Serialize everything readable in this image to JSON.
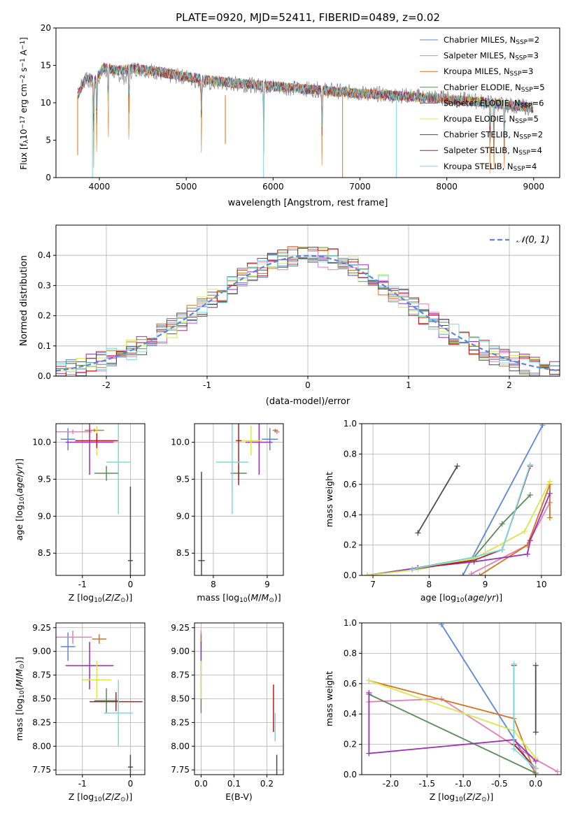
{
  "colors": {
    "Chabrier MILES": "#5b86d8",
    "Salpeter MILES": "#e37fb6",
    "Kroupa MILES": "#d6731f",
    "Chabrier ELODIE": "#5b8a5b",
    "Salpeter ELODIE": "#9a2fb8",
    "Kroupa ELODIE": "#d6e84e",
    "Chabrier STELIB": "#4d4d4d",
    "Salpeter STELIB": "#b31f1f",
    "Kroupa STELIB": "#7fd7e0",
    "normal_curve": "#5b86d8",
    "data_spectrum": "#808080"
  },
  "chart_data": [
    {
      "type": "line",
      "id": "spectrum",
      "title": "PLATE=0920, MJD=52411, FIBERID=0489, z=0.02",
      "xlabel": "wavelength [Angstrom, rest frame]",
      "ylabel_parts": [
        "Flux [f",
        "λ",
        "10",
        "−17",
        " erg cm",
        "−2",
        " s",
        "−1",
        " A",
        "−1",
        "]"
      ],
      "xlim": [
        3500,
        9300
      ],
      "ylim": [
        0,
        20
      ],
      "xticks": [
        4000,
        5000,
        6000,
        7000,
        8000,
        9000
      ],
      "yticks": [
        0,
        5,
        10,
        15,
        20
      ],
      "grid": false,
      "legend_position": "upper-right",
      "legend": [
        {
          "label": "Chabrier MILES, N",
          "sub": "SSP",
          "tail": "=2"
        },
        {
          "label": "Salpeter MILES, N",
          "sub": "SSP",
          "tail": "=3"
        },
        {
          "label": "Kroupa MILES, N",
          "sub": "SSP",
          "tail": "=3"
        },
        {
          "label": "Chabrier ELODIE, N",
          "sub": "SSP",
          "tail": "=5"
        },
        {
          "label": "Salpeter ELODIE, N",
          "sub": "SSP",
          "tail": "=6"
        },
        {
          "label": "Kroupa ELODIE, N",
          "sub": "SSP",
          "tail": "=5"
        },
        {
          "label": "Chabrier STELIB, N",
          "sub": "SSP",
          "tail": "=2"
        },
        {
          "label": "Salpeter STELIB, N",
          "sub": "SSP",
          "tail": "=4"
        },
        {
          "label": "Kroupa STELIB, N",
          "sub": "SSP",
          "tail": "=4"
        }
      ],
      "data_spectrum_points": [
        [
          3750,
          11.8
        ],
        [
          3850,
          13.2
        ],
        [
          3950,
          12.4
        ],
        [
          4050,
          14.6
        ],
        [
          4150,
          14.2
        ],
        [
          4300,
          13.4
        ],
        [
          4400,
          14.6
        ],
        [
          4600,
          14.3
        ],
        [
          4800,
          13.6
        ],
        [
          5000,
          13.5
        ],
        [
          5200,
          12.6
        ],
        [
          5500,
          12.6
        ],
        [
          5800,
          12.3
        ],
        [
          6000,
          12.2
        ],
        [
          6300,
          11.9
        ],
        [
          6600,
          11.7
        ],
        [
          7000,
          11.3
        ],
        [
          7400,
          11.0
        ],
        [
          7800,
          10.8
        ],
        [
          8200,
          10.4
        ],
        [
          8500,
          10.0
        ],
        [
          8800,
          9.6
        ],
        [
          9000,
          9.3
        ]
      ],
      "model_spectrum_points": [
        [
          3750,
          11.0
        ],
        [
          3850,
          13.5
        ],
        [
          3950,
          13.0
        ],
        [
          4050,
          14.7
        ],
        [
          4200,
          14.3
        ],
        [
          4400,
          14.6
        ],
        [
          4700,
          14.1
        ],
        [
          5000,
          13.5
        ],
        [
          5300,
          12.9
        ],
        [
          5600,
          12.6
        ],
        [
          6000,
          12.2
        ],
        [
          6400,
          11.8
        ],
        [
          6800,
          11.4
        ],
        [
          7200,
          11.1
        ],
        [
          7600,
          10.8
        ],
        [
          8000,
          10.5
        ],
        [
          8400,
          10.1
        ],
        [
          8700,
          9.7
        ],
        [
          9000,
          9.3
        ]
      ],
      "absorption_lines": [
        3934,
        3969,
        4102,
        4340,
        5175,
        5892,
        6563,
        8498,
        8542,
        8662
      ]
    },
    {
      "type": "histogram",
      "id": "residuals",
      "xlabel": "(data-model)/error",
      "ylabel": "Normed distribution",
      "xlim": [
        -2.5,
        2.5
      ],
      "ylim": [
        0,
        0.5
      ],
      "xticks": [
        -2,
        -1,
        0,
        1,
        2
      ],
      "yticks": [
        0.0,
        0.1,
        0.2,
        0.3,
        0.4
      ],
      "grid": true,
      "legend_position": "upper-right",
      "legend": [
        {
          "label": "𝒩(0, 1)",
          "style": "dashed"
        }
      ],
      "bin_width": 0.1
    },
    {
      "type": "scatter",
      "id": "age_vs_Z",
      "xlabel": "Z [log10(Z/Z⊙)]",
      "ylabel": "age [log10(age/yr)]",
      "xlim": [
        -1.55,
        0.3
      ],
      "ylim": [
        8.2,
        10.25
      ],
      "xticks": [
        -1,
        0
      ],
      "yticks": [
        8.5,
        9.0,
        9.5,
        10.0
      ],
      "grid": true,
      "points": [
        {
          "model": "Chabrier MILES",
          "x": -1.3,
          "xerr": 0.15,
          "y": 10.04,
          "yerr": 0.15
        },
        {
          "model": "Salpeter MILES",
          "x": -1.2,
          "xerr": 0.4,
          "y": 10.14,
          "yerr": 0.03
        },
        {
          "model": "Kroupa MILES",
          "x": -0.75,
          "xerr": 0.2,
          "y": 10.16,
          "yerr": 0.02
        },
        {
          "model": "Chabrier ELODIE",
          "x": -0.5,
          "xerr": 0.25,
          "y": 9.58,
          "yerr": 0.1
        },
        {
          "model": "Salpeter ELODIE",
          "x": -0.85,
          "xerr": 0.5,
          "y": 10.0,
          "yerr": 0.44
        },
        {
          "model": "Kroupa ELODIE",
          "x": -0.7,
          "xerr": 0.3,
          "y": 10.02,
          "yerr": 0.2
        },
        {
          "model": "Chabrier STELIB",
          "x": 0.0,
          "xerr": 0.05,
          "y": 8.4,
          "yerr": 1.0
        },
        {
          "model": "Salpeter STELIB",
          "x": -0.7,
          "xerr": 0.45,
          "y": 10.02,
          "yerr": 0.1
        },
        {
          "model": "Kroupa STELIB",
          "x": -0.25,
          "xerr": 0.25,
          "y": 9.73,
          "yerr": 0.7
        }
      ]
    },
    {
      "type": "scatter",
      "id": "age_vs_mass",
      "xlabel": "mass [log10(M/M⊙)]",
      "xlim": [
        7.65,
        9.3
      ],
      "ylim": [
        8.2,
        10.25
      ],
      "xticks": [
        8,
        9
      ],
      "yticks": [
        8.5,
        9.0,
        9.5,
        10.0
      ],
      "grid": true,
      "points": [
        {
          "model": "Chabrier MILES",
          "x": 9.05,
          "xerr": 0.15,
          "y": 10.04,
          "yerr": 0.15
        },
        {
          "model": "Salpeter MILES",
          "x": 9.18,
          "xerr": 0.05,
          "y": 10.14,
          "yerr": 0.03
        },
        {
          "model": "Kroupa MILES",
          "x": 9.15,
          "xerr": 0.05,
          "y": 10.16,
          "yerr": 0.02
        },
        {
          "model": "Chabrier ELODIE",
          "x": 8.47,
          "xerr": 0.15,
          "y": 9.58,
          "yerr": 0.1
        },
        {
          "model": "Salpeter ELODIE",
          "x": 8.85,
          "xerr": 0.25,
          "y": 10.0,
          "yerr": 0.44
        },
        {
          "model": "Kroupa ELODIE",
          "x": 8.7,
          "xerr": 0.2,
          "y": 10.02,
          "yerr": 0.2
        },
        {
          "model": "Chabrier STELIB",
          "x": 7.78,
          "xerr": 0.06,
          "y": 8.4,
          "yerr": 1.2
        },
        {
          "model": "Salpeter STELIB",
          "x": 8.47,
          "xerr": 0.05,
          "y": 10.02,
          "yerr": 0.6
        },
        {
          "model": "Kroupa STELIB",
          "x": 8.35,
          "xerr": 0.3,
          "y": 9.73,
          "yerr": 0.7
        }
      ]
    },
    {
      "type": "line",
      "id": "massweight_vs_age",
      "xlabel": "age [log10(age/yr)]",
      "ylabel": "mass weight",
      "xlim": [
        6.8,
        10.35
      ],
      "ylim": [
        0,
        1
      ],
      "xticks": [
        7,
        8,
        9,
        10
      ],
      "yticks": [
        0.0,
        0.2,
        0.4,
        0.6,
        0.8,
        1.0
      ],
      "grid": true,
      "series": [
        {
          "model": "Chabrier MILES",
          "points": [
            [
              8.6,
              0.0
            ],
            [
              10.02,
              0.99
            ]
          ]
        },
        {
          "model": "Salpeter MILES",
          "points": [
            [
              8.75,
              0.01
            ],
            [
              9.75,
              0.2
            ],
            [
              10.15,
              0.48
            ]
          ]
        },
        {
          "model": "Kroupa MILES",
          "points": [
            [
              8.9,
              0.0
            ],
            [
              9.75,
              0.2
            ],
            [
              10.15,
              0.6
            ],
            [
              10.15,
              0.38
            ]
          ]
        },
        {
          "model": "Chabrier ELODIE",
          "points": [
            [
              6.9,
              0.0
            ],
            [
              7.8,
              0.05
            ],
            [
              8.8,
              0.12
            ],
            [
              9.3,
              0.34
            ],
            [
              9.8,
              0.53
            ]
          ]
        },
        {
          "model": "Salpeter ELODIE",
          "points": [
            [
              6.9,
              0.0
            ],
            [
              7.8,
              0.05
            ],
            [
              8.8,
              0.09
            ],
            [
              9.75,
              0.14
            ],
            [
              9.8,
              0.23
            ],
            [
              10.15,
              0.54
            ]
          ]
        },
        {
          "model": "Kroupa ELODIE",
          "points": [
            [
              6.9,
              0.0
            ],
            [
              7.8,
              0.04
            ],
            [
              8.8,
              0.11
            ],
            [
              9.7,
              0.29
            ],
            [
              10.15,
              0.62
            ]
          ]
        },
        {
          "model": "Chabrier STELIB",
          "points": [
            [
              7.8,
              0.28
            ],
            [
              8.5,
              0.72
            ]
          ]
        },
        {
          "model": "Salpeter STELIB",
          "points": [
            [
              7.7,
              0.04
            ],
            [
              8.8,
              0.1
            ],
            [
              9.3,
              0.17
            ],
            [
              9.8,
              0.72
            ]
          ]
        },
        {
          "model": "Kroupa STELIB",
          "points": [
            [
              7.7,
              0.04
            ],
            [
              8.8,
              0.12
            ],
            [
              9.3,
              0.17
            ],
            [
              9.8,
              0.73
            ]
          ]
        }
      ]
    },
    {
      "type": "scatter",
      "id": "mass_vs_Z",
      "xlabel": "Z [log10(Z/Z⊙)]",
      "ylabel": "mass [log10(M/M⊙)]",
      "xlim": [
        -1.55,
        0.3
      ],
      "ylim": [
        7.7,
        9.3
      ],
      "xticks": [
        -1,
        0
      ],
      "yticks": [
        7.75,
        8.0,
        8.25,
        8.5,
        8.75,
        9.0,
        9.25
      ],
      "grid": true,
      "points": [
        {
          "model": "Chabrier MILES",
          "x": -1.3,
          "xerr": 0.15,
          "y": 9.05,
          "yerr": 0.15
        },
        {
          "model": "Salpeter MILES",
          "x": -1.2,
          "xerr": 0.4,
          "y": 9.15,
          "yerr": 0.07
        },
        {
          "model": "Kroupa MILES",
          "x": -0.65,
          "xerr": 0.15,
          "y": 9.13,
          "yerr": 0.05
        },
        {
          "model": "Chabrier ELODIE",
          "x": -0.5,
          "xerr": 0.25,
          "y": 8.48,
          "yerr": 0.13
        },
        {
          "model": "Salpeter ELODIE",
          "x": -0.85,
          "xerr": 0.5,
          "y": 8.85,
          "yerr": 0.25
        },
        {
          "model": "Kroupa ELODIE",
          "x": -0.7,
          "xerr": 0.3,
          "y": 8.7,
          "yerr": 0.2
        },
        {
          "model": "Chabrier STELIB",
          "x": 0.0,
          "xerr": 0.05,
          "y": 7.78,
          "yerr": 0.13
        },
        {
          "model": "Salpeter STELIB",
          "x": -0.3,
          "xerr": 0.55,
          "y": 8.47,
          "yerr": 0.1
        },
        {
          "model": "Kroupa STELIB",
          "x": -0.25,
          "xerr": 0.3,
          "y": 8.35,
          "yerr": 0.35
        }
      ]
    },
    {
      "type": "scatter",
      "id": "mass_vs_EBV",
      "xlabel": "E(B-V)",
      "xlim": [
        -0.02,
        0.25
      ],
      "ylim": [
        7.7,
        9.3
      ],
      "xticks": [
        0.0,
        0.1,
        0.2
      ],
      "yticks": [
        7.75,
        8.0,
        8.25,
        8.5,
        8.75,
        9.0,
        9.25
      ],
      "grid": true,
      "points": [
        {
          "model": "Chabrier MILES",
          "x": 0.0,
          "xerr": 0.0,
          "y": 9.05,
          "yerr": 0.15
        },
        {
          "model": "Salpeter MILES",
          "x": 0.0,
          "xerr": 0.0,
          "y": 9.15,
          "yerr": 0.07
        },
        {
          "model": "Kroupa MILES",
          "x": 0.0,
          "xerr": 0.0,
          "y": 9.13,
          "yerr": 0.05
        },
        {
          "model": "Chabrier ELODIE",
          "x": 0.0,
          "xerr": 0.0,
          "y": 8.48,
          "yerr": 0.13
        },
        {
          "model": "Salpeter ELODIE",
          "x": 0.0,
          "xerr": 0.0,
          "y": 8.85,
          "yerr": 0.25
        },
        {
          "model": "Kroupa ELODIE",
          "x": 0.0,
          "xerr": 0.0,
          "y": 8.7,
          "yerr": 0.2
        },
        {
          "model": "Chabrier STELIB",
          "x": 0.23,
          "xerr": 0.0,
          "y": 7.78,
          "yerr": 0.13
        },
        {
          "model": "Salpeter STELIB",
          "x": 0.22,
          "xerr": 0.0,
          "y": 8.4,
          "yerr": 0.25
        },
        {
          "model": "Kroupa STELIB",
          "x": 0.225,
          "xerr": 0.0,
          "y": 8.2,
          "yerr": 0.15
        }
      ]
    },
    {
      "type": "line",
      "id": "massweight_vs_Z",
      "xlabel": "Z [log10(Z/Z⊙)]",
      "ylabel": "mass weight",
      "xlim": [
        -2.4,
        0.35
      ],
      "ylim": [
        0,
        1
      ],
      "xticks": [
        -2.0,
        -1.5,
        -1.0,
        -0.5,
        0.0
      ],
      "yticks": [
        0.0,
        0.2,
        0.4,
        0.6,
        0.8,
        1.0
      ],
      "grid": true,
      "series": [
        {
          "model": "Chabrier MILES",
          "points": [
            [
              -1.3,
              0.99
            ],
            [
              0.0,
              0.01
            ]
          ]
        },
        {
          "model": "Salpeter MILES",
          "points": [
            [
              -2.3,
              0.48
            ],
            [
              -1.3,
              0.5
            ],
            [
              0.0,
              0.1
            ],
            [
              0.3,
              0.02
            ]
          ]
        },
        {
          "model": "Kroupa MILES",
          "points": [
            [
              -2.3,
              0.62
            ],
            [
              -0.3,
              0.37
            ],
            [
              0.0,
              0.0
            ]
          ]
        },
        {
          "model": "Chabrier ELODIE",
          "points": [
            [
              -2.3,
              0.53
            ],
            [
              0.0,
              0.01
            ]
          ]
        },
        {
          "model": "Salpeter ELODIE",
          "points": [
            [
              -2.3,
              0.54
            ],
            [
              -2.3,
              0.14
            ],
            [
              -0.3,
              0.23
            ],
            [
              0.0,
              0.09
            ]
          ]
        },
        {
          "model": "Kroupa ELODIE",
          "points": [
            [
              -2.3,
              0.62
            ],
            [
              -0.3,
              0.29
            ],
            [
              0.0,
              0.11
            ]
          ]
        },
        {
          "model": "Chabrier STELIB",
          "points": [
            [
              0.0,
              0.72
            ],
            [
              0.0,
              0.28
            ]
          ]
        },
        {
          "model": "Salpeter STELIB",
          "points": [
            [
              -0.3,
              0.72
            ],
            [
              -0.3,
              0.2
            ],
            [
              0.0,
              0.04
            ]
          ]
        },
        {
          "model": "Kroupa STELIB",
          "points": [
            [
              -0.3,
              0.73
            ],
            [
              -0.3,
              0.17
            ],
            [
              0.0,
              0.04
            ]
          ]
        }
      ]
    }
  ]
}
